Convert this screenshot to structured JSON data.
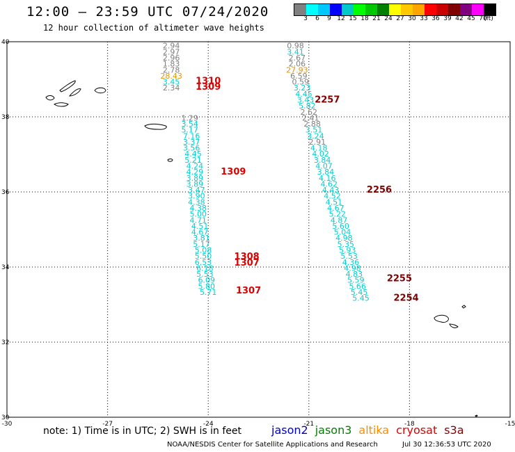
{
  "header": {
    "title": "12:00 – 23:59 UTC 07/24/2020",
    "subtitle": "12 hour collection of altimeter wave heights"
  },
  "color_scale": {
    "swatches": [
      "#808080",
      "#00ffff",
      "#00c8ff",
      "#0000ff",
      "#00c8c8",
      "#00ff00",
      "#00c800",
      "#008000",
      "#ffff00",
      "#ffc800",
      "#ffa500",
      "#ff0000",
      "#c80000",
      "#800000",
      "#800080",
      "#ff00ff",
      "#000000"
    ],
    "labels": [
      "3",
      "6",
      "9",
      "12",
      "15",
      "18",
      "21",
      "24",
      "27",
      "30",
      "33",
      "36",
      "39",
      "42",
      "45",
      "70",
      "(ft)"
    ]
  },
  "axes": {
    "x_ticks": [
      "-30",
      "-27",
      "-24",
      "-21",
      "-18",
      "-15"
    ],
    "y_ticks": [
      "40",
      "38",
      "36",
      "34",
      "32",
      "30"
    ]
  },
  "colors": {
    "jason2": "#0000cc",
    "jason3": "#008000",
    "altika": "#ff8c00",
    "cryosat": "#e00000",
    "s3a": "#800000",
    "gray": "#7f7f7f",
    "cyan": "#00d0d0",
    "orange": "#e69500"
  },
  "chart_data": {
    "type": "scatter",
    "title": "12:00 – 23:59 UTC 07/24/2020",
    "subtitle": "12 hour collection of altimeter wave heights",
    "xlim": [
      -30,
      -15
    ],
    "ylim": [
      30,
      40
    ],
    "units": "ft",
    "tracks": [
      {
        "color_key": "mixed",
        "points": [
          {
            "lon": -25.1,
            "lat": 39.82,
            "v": "2.94",
            "c": "gray"
          },
          {
            "lon": -25.1,
            "lat": 39.66,
            "v": "2.97",
            "c": "gray"
          },
          {
            "lon": -25.1,
            "lat": 39.5,
            "v": "2.96",
            "c": "gray"
          },
          {
            "lon": -25.1,
            "lat": 39.34,
            "v": "1.83",
            "c": "gray"
          },
          {
            "lon": -25.1,
            "lat": 39.18,
            "v": "2.78",
            "c": "gray"
          },
          {
            "lon": -25.1,
            "lat": 39.02,
            "v": "28.43",
            "c": "orange"
          },
          {
            "lon": -25.1,
            "lat": 38.86,
            "v": "3.45",
            "c": "cyan"
          },
          {
            "lon": -25.1,
            "lat": 38.7,
            "v": "2.34",
            "c": "gray"
          }
        ]
      },
      {
        "color_key": "mixed",
        "points": [
          {
            "lon": -24.55,
            "lat": 37.9,
            "v": "1.29",
            "c": "gray"
          },
          {
            "lon": -24.55,
            "lat": 37.74,
            "v": "3.54",
            "c": "cyan"
          },
          {
            "lon": -24.55,
            "lat": 37.58,
            "v": "5.17",
            "c": "cyan"
          },
          {
            "lon": -24.5,
            "lat": 37.42,
            "v": "7.16",
            "c": "cyan"
          },
          {
            "lon": -24.5,
            "lat": 37.26,
            "v": "3.37",
            "c": "cyan"
          },
          {
            "lon": -24.5,
            "lat": 37.1,
            "v": "3.56",
            "c": "cyan"
          },
          {
            "lon": -24.45,
            "lat": 36.94,
            "v": "4.45",
            "c": "cyan"
          },
          {
            "lon": -24.45,
            "lat": 36.78,
            "v": "5.21",
            "c": "cyan"
          },
          {
            "lon": -24.4,
            "lat": 36.62,
            "v": "4.24",
            "c": "cyan"
          },
          {
            "lon": -24.4,
            "lat": 36.46,
            "v": "4.29",
            "c": "cyan"
          },
          {
            "lon": -24.4,
            "lat": 36.3,
            "v": "3.89",
            "c": "cyan"
          },
          {
            "lon": -24.4,
            "lat": 36.14,
            "v": "3.89",
            "c": "cyan"
          },
          {
            "lon": -24.35,
            "lat": 35.98,
            "v": "3.47",
            "c": "cyan"
          },
          {
            "lon": -24.35,
            "lat": 35.82,
            "v": "3.90",
            "c": "cyan"
          },
          {
            "lon": -24.35,
            "lat": 35.66,
            "v": "4.38",
            "c": "cyan"
          },
          {
            "lon": -24.3,
            "lat": 35.5,
            "v": "4.38",
            "c": "cyan"
          },
          {
            "lon": -24.3,
            "lat": 35.34,
            "v": "5.00",
            "c": "cyan"
          },
          {
            "lon": -24.3,
            "lat": 35.18,
            "v": "4.71",
            "c": "cyan"
          },
          {
            "lon": -24.25,
            "lat": 35.02,
            "v": "4.51",
            "c": "cyan"
          },
          {
            "lon": -24.25,
            "lat": 34.86,
            "v": "4.67",
            "c": "cyan"
          },
          {
            "lon": -24.2,
            "lat": 34.7,
            "v": "3.81",
            "c": "cyan"
          },
          {
            "lon": -24.2,
            "lat": 34.54,
            "v": "5.17",
            "c": "cyan"
          },
          {
            "lon": -24.15,
            "lat": 34.38,
            "v": "5.08",
            "c": "cyan"
          },
          {
            "lon": -24.15,
            "lat": 34.22,
            "v": "5.50",
            "c": "cyan"
          },
          {
            "lon": -24.15,
            "lat": 34.06,
            "v": "6.53",
            "c": "cyan"
          },
          {
            "lon": -24.1,
            "lat": 33.9,
            "v": "6.18",
            "c": "cyan"
          },
          {
            "lon": -24.1,
            "lat": 33.74,
            "v": "5.53",
            "c": "cyan"
          },
          {
            "lon": -24.05,
            "lat": 33.58,
            "v": "6.09",
            "c": "cyan"
          },
          {
            "lon": -24.05,
            "lat": 33.42,
            "v": "5.80",
            "c": "cyan"
          },
          {
            "lon": -24.0,
            "lat": 33.26,
            "v": "5.71",
            "c": "cyan"
          }
        ]
      },
      {
        "color_key": "mixed",
        "points": [
          {
            "lon": -21.4,
            "lat": 39.82,
            "v": "0.98",
            "c": "gray"
          },
          {
            "lon": -21.4,
            "lat": 39.66,
            "v": "3.41",
            "c": "cyan"
          },
          {
            "lon": -21.35,
            "lat": 39.5,
            "v": "2.67",
            "c": "gray"
          },
          {
            "lon": -21.35,
            "lat": 39.34,
            "v": "2.06",
            "c": "gray"
          },
          {
            "lon": -21.35,
            "lat": 39.18,
            "v": "27.93",
            "c": "orange"
          },
          {
            "lon": -21.3,
            "lat": 39.02,
            "v": "6.59",
            "c": "gray"
          },
          {
            "lon": -21.25,
            "lat": 38.86,
            "v": "0.59",
            "c": "gray"
          },
          {
            "lon": -21.2,
            "lat": 38.7,
            "v": "3.23",
            "c": "cyan"
          },
          {
            "lon": -21.15,
            "lat": 38.54,
            "v": "4.45",
            "c": "cyan"
          },
          {
            "lon": -21.1,
            "lat": 38.38,
            "v": "3.43",
            "c": "cyan"
          },
          {
            "lon": -21.05,
            "lat": 38.22,
            "v": "5.82",
            "c": "cyan"
          },
          {
            "lon": -21.0,
            "lat": 38.06,
            "v": "2.62",
            "c": "gray"
          },
          {
            "lon": -20.95,
            "lat": 37.9,
            "v": "2.41",
            "c": "gray"
          },
          {
            "lon": -20.9,
            "lat": 37.74,
            "v": "2.88",
            "c": "gray"
          },
          {
            "lon": -20.85,
            "lat": 37.58,
            "v": "3.51",
            "c": "cyan"
          },
          {
            "lon": -20.8,
            "lat": 37.42,
            "v": "3.24",
            "c": "cyan"
          },
          {
            "lon": -20.75,
            "lat": 37.26,
            "v": "2.91",
            "c": "gray"
          },
          {
            "lon": -20.7,
            "lat": 37.1,
            "v": "4.18",
            "c": "cyan"
          },
          {
            "lon": -20.65,
            "lat": 36.94,
            "v": "4.02",
            "c": "cyan"
          },
          {
            "lon": -20.6,
            "lat": 36.78,
            "v": "3.84",
            "c": "cyan"
          },
          {
            "lon": -20.55,
            "lat": 36.62,
            "v": "4.07",
            "c": "cyan"
          },
          {
            "lon": -20.5,
            "lat": 36.46,
            "v": "3.84",
            "c": "cyan"
          },
          {
            "lon": -20.45,
            "lat": 36.3,
            "v": "4.16",
            "c": "cyan"
          },
          {
            "lon": -20.4,
            "lat": 36.14,
            "v": "4.62",
            "c": "cyan"
          },
          {
            "lon": -20.35,
            "lat": 35.98,
            "v": "4.43",
            "c": "cyan"
          },
          {
            "lon": -20.3,
            "lat": 35.82,
            "v": "4.52",
            "c": "cyan"
          },
          {
            "lon": -20.25,
            "lat": 35.66,
            "v": "4.51",
            "c": "cyan"
          },
          {
            "lon": -20.2,
            "lat": 35.5,
            "v": "4.67",
            "c": "cyan"
          },
          {
            "lon": -20.15,
            "lat": 35.34,
            "v": "5.22",
            "c": "cyan"
          },
          {
            "lon": -20.1,
            "lat": 35.18,
            "v": "4.87",
            "c": "cyan"
          },
          {
            "lon": -20.05,
            "lat": 35.02,
            "v": "5.60",
            "c": "cyan"
          },
          {
            "lon": -20.0,
            "lat": 34.86,
            "v": "5.04",
            "c": "cyan"
          },
          {
            "lon": -19.95,
            "lat": 34.7,
            "v": "4.98",
            "c": "cyan"
          },
          {
            "lon": -19.9,
            "lat": 34.54,
            "v": "5.35",
            "c": "cyan"
          },
          {
            "lon": -19.85,
            "lat": 34.38,
            "v": "5.93",
            "c": "cyan"
          },
          {
            "lon": -19.8,
            "lat": 34.22,
            "v": "5.53",
            "c": "cyan"
          },
          {
            "lon": -19.75,
            "lat": 34.06,
            "v": "4.36",
            "c": "cyan"
          },
          {
            "lon": -19.7,
            "lat": 33.9,
            "v": "4.98",
            "c": "cyan"
          },
          {
            "lon": -19.65,
            "lat": 33.74,
            "v": "4.83",
            "c": "cyan"
          },
          {
            "lon": -19.6,
            "lat": 33.58,
            "v": "5.59",
            "c": "cyan"
          },
          {
            "lon": -19.55,
            "lat": 33.42,
            "v": "5.66",
            "c": "cyan"
          },
          {
            "lon": -19.5,
            "lat": 33.26,
            "v": "5.45",
            "c": "cyan"
          },
          {
            "lon": -19.45,
            "lat": 33.1,
            "v": "5.45",
            "c": "cyan"
          }
        ]
      }
    ],
    "pass_times": [
      {
        "text": "1310",
        "c": "cryosat"
      },
      {
        "text": "1309",
        "c": "cryosat"
      },
      {
        "text": "1309",
        "c": "cryosat"
      },
      {
        "text": "1308",
        "c": "cryosat"
      },
      {
        "text": "1307",
        "c": "cryosat"
      },
      {
        "text": "1307",
        "c": "cryosat"
      },
      {
        "text": "2257",
        "c": "s3a"
      },
      {
        "text": "2256",
        "c": "s3a"
      },
      {
        "text": "2255",
        "c": "s3a"
      },
      {
        "text": "2254",
        "c": "s3a"
      }
    ]
  },
  "footer": {
    "note": "note: 1) Time is in UTC; 2) SWH is in feet",
    "legend": [
      {
        "label": "jason2",
        "key": "jason2"
      },
      {
        "label": "jason3",
        "key": "jason3"
      },
      {
        "label": "altika",
        "key": "altika"
      },
      {
        "label": "cryosat",
        "key": "cryosat"
      },
      {
        "label": "s3a",
        "key": "s3a"
      }
    ],
    "credit": "NOAA/NESDIS Center for Satellite Applications and Research",
    "timestamp": "Jul 30 12:36:53 UTC 2020"
  }
}
